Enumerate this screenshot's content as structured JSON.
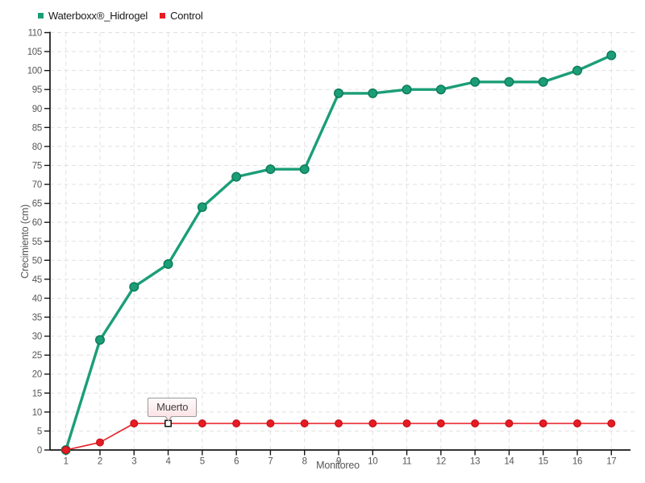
{
  "legend": {
    "items": [
      {
        "label": "Waterboxx®_Hidrogel",
        "color": "#1b9e77"
      },
      {
        "label": "Control",
        "color": "#e81b23"
      }
    ]
  },
  "chart_data": {
    "type": "line",
    "title": "",
    "xlabel": "Monitoreo",
    "ylabel": "Crecimiento (cm)",
    "x": [
      1,
      2,
      3,
      4,
      5,
      6,
      7,
      8,
      9,
      10,
      11,
      12,
      13,
      14,
      15,
      16,
      17
    ],
    "series": [
      {
        "name": "Waterboxx®_Hidrogel",
        "color": "#1b9e77",
        "marker_stroke": "#0c7a58",
        "line_width": 3.4,
        "marker_radius": 5.3,
        "values": [
          0,
          29,
          43,
          49,
          64,
          72,
          74,
          74,
          94,
          94,
          95,
          95,
          97,
          97,
          97,
          100,
          104
        ]
      },
      {
        "name": "Control",
        "color": "#e81b23",
        "marker_stroke": "#c8151c",
        "line_width": 1.6,
        "marker_radius": 4.3,
        "values": [
          0,
          2,
          7,
          7,
          7,
          7,
          7,
          7,
          7,
          7,
          7,
          7,
          7,
          7,
          7,
          7,
          7
        ]
      }
    ],
    "ylim": [
      0,
      110
    ],
    "ytick_step": 5,
    "grid": true,
    "legend_position": "top-left",
    "annotation": {
      "text": "Muerto",
      "series_index": 1,
      "x": 4,
      "y": 7
    }
  },
  "style": {
    "grid_color": "#e0e0e0",
    "axis_color": "#161616",
    "tick_label_color": "#575757",
    "background": "#ffffff"
  }
}
